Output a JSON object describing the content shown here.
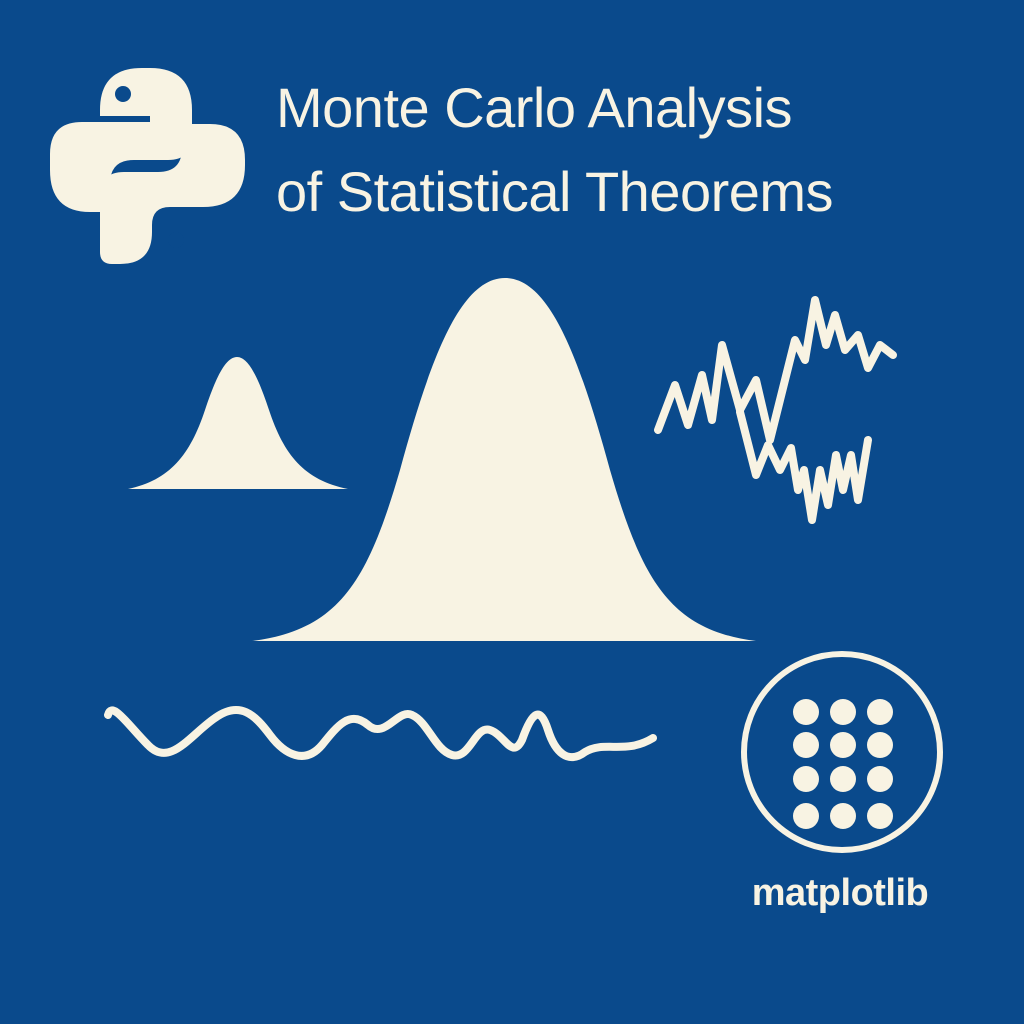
{
  "colors": {
    "background": "#0a4a8c",
    "ink": "#f8f3e3"
  },
  "title": {
    "line1": "Monte Carlo Analysis",
    "line2": "of Statistical Theorems"
  },
  "icons": {
    "python_logo": "python-logo",
    "matplotlib_logo": "matplotlib-logo"
  },
  "matplotlib_label": "matplotlib"
}
